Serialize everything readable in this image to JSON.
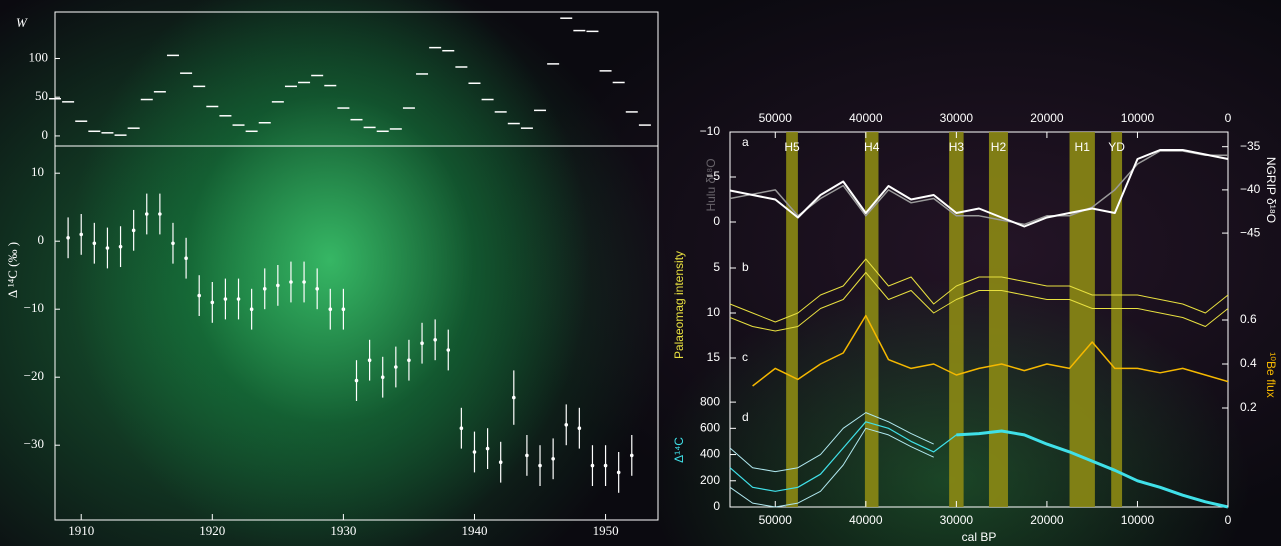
{
  "chart_data": [
    {
      "type": "dash",
      "y_label": "W",
      "x": [
        1908,
        1909,
        1910,
        1911,
        1912,
        1913,
        1914,
        1915,
        1916,
        1917,
        1918,
        1919,
        1920,
        1921,
        1922,
        1923,
        1924,
        1925,
        1926,
        1927,
        1928,
        1929,
        1930,
        1931,
        1932,
        1933,
        1934,
        1935,
        1936,
        1937,
        1938,
        1939,
        1940,
        1941,
        1942,
        1943,
        1944,
        1945,
        1946,
        1947,
        1948,
        1949,
        1950,
        1951,
        1952,
        1953
      ],
      "values": [
        48,
        44,
        19,
        6,
        4,
        1,
        10,
        47,
        57,
        104,
        81,
        64,
        38,
        26,
        14,
        6,
        17,
        44,
        64,
        69,
        78,
        65,
        36,
        21,
        11,
        6,
        9,
        36,
        80,
        114,
        110,
        89,
        68,
        47,
        31,
        16,
        10,
        33,
        93,
        152,
        136,
        135,
        84,
        69,
        31,
        14
      ],
      "color": "#ffffff",
      "xlim": [
        1908,
        1954
      ],
      "ylim": [
        -13,
        160
      ],
      "yticks": [
        0,
        50,
        100
      ]
    },
    {
      "type": "errorbar",
      "y_label": "Δ ¹⁴C (‰ )",
      "x": [
        1909,
        1910,
        1911,
        1912,
        1913,
        1914,
        1915,
        1916,
        1917,
        1918,
        1919,
        1920,
        1921,
        1922,
        1923,
        1924,
        1925,
        1926,
        1927,
        1928,
        1929,
        1930,
        1931,
        1932,
        1933,
        1934,
        1935,
        1936,
        1937,
        1938,
        1939,
        1940,
        1941,
        1942,
        1943,
        1944,
        1945,
        1946,
        1947,
        1948,
        1949,
        1950,
        1951,
        1952
      ],
      "values": [
        0.5,
        1,
        -0.3,
        -1,
        -0.8,
        1.6,
        4,
        4,
        -0.3,
        -2.5,
        -8,
        -9,
        -8.5,
        -8.5,
        -10,
        -7,
        -6.5,
        -6,
        -6,
        -7,
        -10,
        -10,
        -20.5,
        -17.5,
        -20,
        -18.5,
        -17.5,
        -15,
        -14.5,
        -16,
        -27.5,
        -31,
        -30.5,
        -32.5,
        -23,
        -31.5,
        -33,
        -32,
        -27,
        -27.5,
        -33,
        -33,
        -34,
        -31.5
      ],
      "errors": [
        3,
        3,
        3,
        3,
        3,
        3,
        3,
        3,
        3,
        3,
        3,
        3,
        3,
        3,
        3,
        3,
        3,
        3,
        3,
        3,
        3,
        3,
        3,
        3,
        3,
        3,
        3,
        3,
        3,
        3,
        3,
        3,
        3,
        3,
        4,
        3,
        3,
        3,
        3,
        3,
        3,
        3,
        3,
        3
      ],
      "color": "#ffffff",
      "xlim": [
        1908,
        1954
      ],
      "xticks": [
        1910,
        1920,
        1930,
        1940,
        1950
      ],
      "ylim": [
        -41,
        14
      ],
      "yticks": [
        10,
        0,
        {
          "value": -10,
          "label": "−10"
        },
        {
          "value": -20,
          "label": "−20"
        },
        {
          "value": -30,
          "label": "−30"
        }
      ]
    },
    {
      "type": "multi_line",
      "x_label": "cal BP",
      "x": [
        55000,
        52500,
        50000,
        47500,
        45000,
        42500,
        40000,
        37500,
        35000,
        32500,
        30000,
        27500,
        25000,
        22500,
        20000,
        17500,
        15000,
        12500,
        10000,
        7500,
        5000,
        2500,
        0
      ],
      "xlim": [
        55000,
        0
      ],
      "xticks": [
        50000,
        40000,
        30000,
        20000,
        10000,
        0
      ],
      "axes": [
        {
          "label": "Hulu δ¹⁸O",
          "side": "left",
          "lim": [
            -10,
            2
          ],
          "ticks": [
            {
              "value": -10,
              "label": "−10"
            },
            {
              "value": -5,
              "label": "−5"
            },
            0
          ]
        },
        {
          "label": "NGRIP δ¹⁸O",
          "side": "right",
          "lim": [
            -33.3,
            -45.8
          ],
          "ticks": [
            {
              "value": -35,
              "label": "−35"
            },
            {
              "value": -40,
              "label": "−40"
            },
            {
              "value": -45,
              "label": "−45"
            }
          ]
        },
        {
          "label": "Palaeomag intensity",
          "side": "left",
          "lim": [
            3,
            17
          ],
          "ticks": [
            5,
            10,
            15
          ]
        },
        {
          "label": "¹⁰Be flux",
          "side": "right",
          "lim": [
            0.8,
            0.1
          ],
          "ticks": [
            0.6,
            0.4,
            0.2
          ]
        },
        {
          "label": "Δ¹⁴C",
          "side": "left",
          "lim": [
            900,
            0
          ],
          "ticks": [
            800,
            600,
            400,
            200,
            0
          ]
        }
      ],
      "panel_labels": [
        "a",
        "b",
        "c",
        "d"
      ],
      "band_color": "#8c8a14",
      "bands": [
        {
          "label": "H5",
          "x": [
            48800,
            47500
          ]
        },
        {
          "label": "H4",
          "x": [
            40100,
            38600
          ]
        },
        {
          "label": "H3",
          "x": [
            30800,
            29200
          ]
        },
        {
          "label": "H2",
          "x": [
            26400,
            24300
          ]
        },
        {
          "label": "H1",
          "x": [
            17500,
            14700
          ]
        },
        {
          "label": "YD",
          "x": [
            12900,
            11700
          ]
        }
      ],
      "series": [
        {
          "axis": 1,
          "color": "#9a9a9a",
          "width": 1.5,
          "values": [
            -41,
            -40.5,
            -40,
            -43,
            -41,
            -39.5,
            -43,
            -40,
            -41.5,
            -41,
            -43,
            -43,
            -43.5,
            -44,
            -43,
            -43,
            -42,
            -40,
            -37,
            -35.5,
            -35.5,
            -36,
            -36
          ]
        },
        {
          "axis": 0,
          "color": "#ffffff",
          "width": 2,
          "values": [
            -3.5,
            -3,
            -2.5,
            -0.5,
            -3,
            -4.5,
            -1,
            -4,
            -2.5,
            -3,
            -1,
            -1.5,
            -0.5,
            0.5,
            -0.5,
            -1,
            -1.5,
            -1,
            -7,
            -8,
            -8,
            -7.5,
            -7
          ]
        },
        {
          "axis": 2,
          "color": "#e8e040",
          "width": 1,
          "values": [
            9,
            10,
            11,
            10,
            8,
            7,
            4,
            7,
            6,
            9,
            7,
            6,
            6,
            6.5,
            7,
            7,
            8,
            8,
            8,
            8.5,
            9,
            10,
            8
          ]
        },
        {
          "axis": 2,
          "color": "#e8e040",
          "width": 1,
          "values": [
            10.5,
            11.5,
            12,
            11.5,
            9.5,
            8.5,
            5.5,
            8.5,
            7.5,
            10,
            8.5,
            7.5,
            7.5,
            8,
            8.5,
            8.5,
            9.5,
            9.5,
            9.5,
            10,
            10.5,
            11.5,
            9.5
          ]
        },
        {
          "axis": 3,
          "color": "#f5b800",
          "width": 1.5,
          "values": [
            null,
            0.3,
            0.38,
            0.33,
            0.4,
            0.45,
            0.62,
            0.42,
            0.38,
            0.4,
            0.35,
            0.38,
            0.4,
            0.37,
            0.4,
            0.38,
            0.5,
            0.38,
            0.38,
            0.36,
            0.38,
            0.35,
            0.32
          ]
        },
        {
          "axis": 4,
          "color": "#b0e8f0",
          "width": 1,
          "values": [
            450,
            300,
            270,
            300,
            400,
            600,
            720,
            650,
            560,
            480,
            null,
            null,
            null,
            null,
            null,
            null,
            null,
            null,
            null,
            null,
            null,
            null,
            null
          ]
        },
        {
          "axis": 4,
          "color": "#b0e8f0",
          "width": 1,
          "values": [
            150,
            30,
            0,
            30,
            120,
            320,
            600,
            550,
            460,
            380,
            null,
            null,
            null,
            null,
            null,
            null,
            null,
            null,
            null,
            null,
            null,
            null,
            null
          ]
        },
        {
          "axis": 4,
          "color": "#40e0e8",
          "width": 1.2,
          "values": [
            300,
            150,
            120,
            150,
            250,
            450,
            650,
            600,
            500,
            420,
            550,
            560,
            580,
            550,
            480,
            420,
            350,
            280,
            200,
            150,
            90,
            40,
            0
          ]
        },
        {
          "axis": 4,
          "color": "#40e0e8",
          "width": 3,
          "values": [
            null,
            null,
            null,
            null,
            null,
            null,
            null,
            null,
            null,
            null,
            550,
            560,
            580,
            550,
            480,
            420,
            350,
            280,
            200,
            150,
            90,
            40,
            0
          ]
        }
      ]
    }
  ]
}
